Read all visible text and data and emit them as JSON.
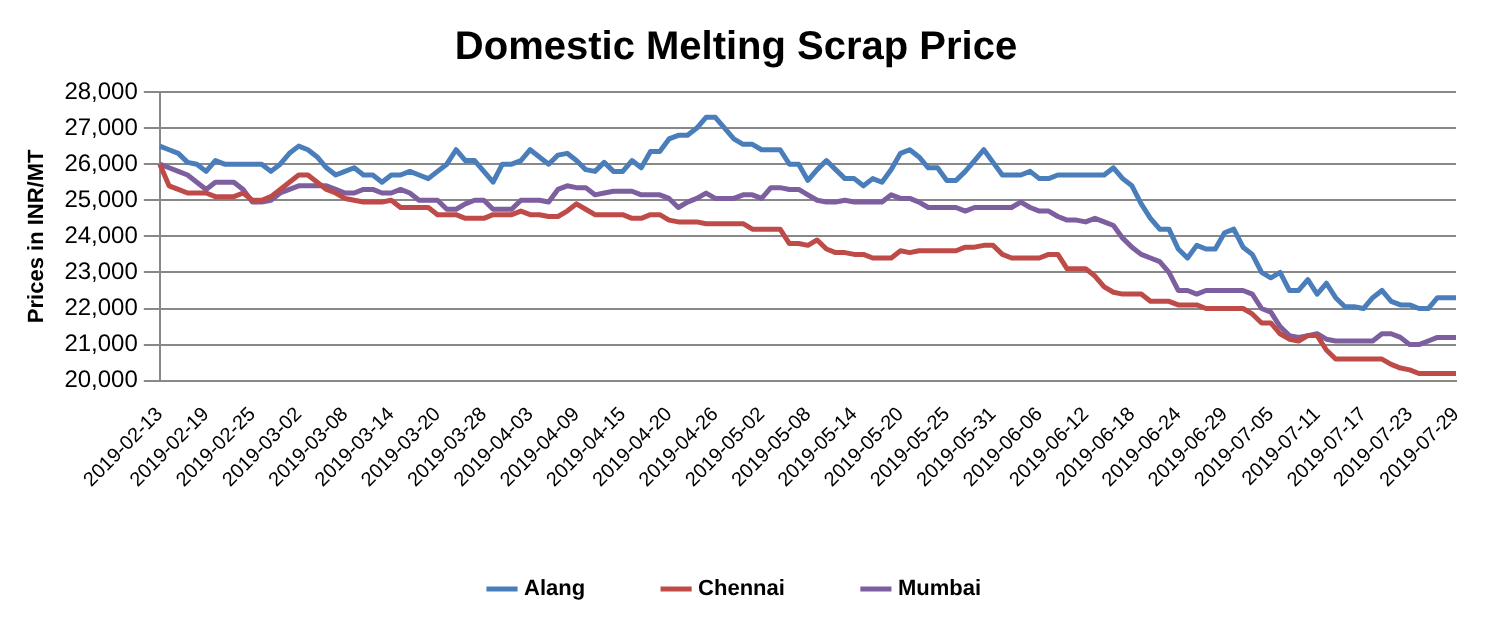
{
  "chart_data": {
    "type": "line",
    "title": "Domestic Melting Scrap Price",
    "ylabel": "Prices in INR/MT",
    "categories": [
      "2019-02-13",
      null,
      null,
      null,
      null,
      "2019-02-19",
      null,
      null,
      null,
      null,
      "2019-02-25",
      null,
      null,
      null,
      null,
      "2019-03-02",
      null,
      null,
      null,
      null,
      "2019-03-08",
      null,
      null,
      null,
      null,
      "2019-03-14",
      null,
      null,
      null,
      null,
      "2019-03-20",
      null,
      null,
      null,
      null,
      "2019-03-28",
      null,
      null,
      null,
      null,
      "2019-04-03",
      null,
      null,
      null,
      null,
      "2019-04-09",
      null,
      null,
      null,
      null,
      "2019-04-15",
      null,
      null,
      null,
      null,
      "2019-04-20",
      null,
      null,
      null,
      null,
      "2019-04-26",
      null,
      null,
      null,
      null,
      "2019-05-02",
      null,
      null,
      null,
      null,
      "2019-05-08",
      null,
      null,
      null,
      null,
      "2019-05-14",
      null,
      null,
      null,
      null,
      "2019-05-20",
      null,
      null,
      null,
      null,
      "2019-05-25",
      null,
      null,
      null,
      null,
      "2019-05-31",
      null,
      null,
      null,
      null,
      "2019-06-06",
      null,
      null,
      null,
      null,
      "2019-06-12",
      null,
      null,
      null,
      null,
      "2019-06-18",
      null,
      null,
      null,
      null,
      "2019-06-24",
      null,
      null,
      null,
      null,
      "2019-06-29",
      null,
      null,
      null,
      null,
      "2019-07-05",
      null,
      null,
      null,
      null,
      "2019-07-11",
      null,
      null,
      null,
      null,
      "2019-07-17",
      null,
      null,
      null,
      null,
      "2019-07-23",
      null,
      null,
      null,
      null,
      "2019-07-29"
    ],
    "series": [
      {
        "name": "Alang",
        "color": "#4a7ebb",
        "values": [
          26500,
          26400,
          26300,
          26050,
          26000,
          25800,
          26100,
          26000,
          26000,
          26000,
          26000,
          26000,
          25800,
          26000,
          26300,
          26500,
          26400,
          26200,
          25900,
          25700,
          25800,
          25900,
          25700,
          25700,
          25500,
          25700,
          25700,
          25800,
          25700,
          25600,
          25800,
          26000,
          26400,
          26100,
          26100,
          25800,
          25500,
          26000,
          26000,
          26100,
          26400,
          26200,
          26000,
          26250,
          26300,
          26100,
          25850,
          25800,
          26050,
          25800,
          25800,
          26100,
          25900,
          26350,
          26350,
          26700,
          26800,
          26800,
          27000,
          27300,
          27300,
          27000,
          26700,
          26550,
          26550,
          26400,
          26400,
          26400,
          26000,
          26000,
          25550,
          25850,
          26100,
          25850,
          25600,
          25600,
          25400,
          25600,
          25500,
          25850,
          26300,
          26400,
          26200,
          25900,
          25900,
          25550,
          25550,
          25800,
          26100,
          26400,
          26050,
          25700,
          25700,
          25700,
          25800,
          25600,
          25600,
          25700,
          25700,
          25700,
          25700,
          25700,
          25700,
          25900,
          25600,
          25400,
          24900,
          24500,
          24200,
          24200,
          23650,
          23400,
          23750,
          23650,
          23650,
          24100,
          24200,
          23700,
          23500,
          23000,
          22850,
          23000,
          22500,
          22500,
          22800,
          22400,
          22700,
          22300,
          22050,
          22050,
          22000,
          22300,
          22500,
          22200,
          22100,
          22100,
          22000,
          22000,
          22300,
          22300,
          22300
        ]
      },
      {
        "name": "Chennai",
        "color": "#be4b48",
        "values": [
          26000,
          25400,
          25300,
          25200,
          25200,
          25200,
          25100,
          25100,
          25100,
          25200,
          25000,
          25000,
          25100,
          25300,
          25500,
          25700,
          25700,
          25500,
          25300,
          25200,
          25050,
          25000,
          24950,
          24950,
          24950,
          25000,
          24800,
          24800,
          24800,
          24800,
          24600,
          24600,
          24600,
          24500,
          24500,
          24500,
          24600,
          24600,
          24600,
          24700,
          24600,
          24600,
          24550,
          24550,
          24700,
          24900,
          24750,
          24600,
          24600,
          24600,
          24600,
          24500,
          24500,
          24600,
          24600,
          24450,
          24400,
          24400,
          24400,
          24350,
          24350,
          24350,
          24350,
          24350,
          24200,
          24200,
          24200,
          24200,
          23800,
          23800,
          23750,
          23900,
          23650,
          23550,
          23550,
          23500,
          23500,
          23400,
          23400,
          23400,
          23600,
          23550,
          23600,
          23600,
          23600,
          23600,
          23600,
          23700,
          23700,
          23750,
          23750,
          23500,
          23400,
          23400,
          23400,
          23400,
          23500,
          23500,
          23100,
          23100,
          23100,
          22900,
          22600,
          22450,
          22400,
          22400,
          22400,
          22200,
          22200,
          22200,
          22100,
          22100,
          22100,
          22000,
          22000,
          22000,
          22000,
          22000,
          21850,
          21600,
          21600,
          21300,
          21150,
          21100,
          21250,
          21250,
          20850,
          20600,
          20600,
          20600,
          20600,
          20600,
          20600,
          20450,
          20350,
          20300,
          20200,
          20200,
          20200,
          20200,
          20200
        ]
      },
      {
        "name": "Mumbai",
        "color": "#7d5fa0",
        "values": [
          26000,
          25900,
          25800,
          25700,
          25500,
          25300,
          25500,
          25500,
          25500,
          25300,
          24950,
          24950,
          25000,
          25200,
          25300,
          25400,
          25400,
          25400,
          25400,
          25300,
          25200,
          25200,
          25300,
          25300,
          25200,
          25200,
          25300,
          25200,
          25000,
          25000,
          25000,
          24750,
          24750,
          24900,
          25000,
          25000,
          24750,
          24750,
          24750,
          25000,
          25000,
          25000,
          24950,
          25300,
          25400,
          25350,
          25350,
          25150,
          25200,
          25250,
          25250,
          25250,
          25150,
          25150,
          25150,
          25050,
          24800,
          24950,
          25050,
          25200,
          25050,
          25050,
          25050,
          25150,
          25150,
          25050,
          25350,
          25350,
          25300,
          25300,
          25150,
          25000,
          24950,
          24950,
          25000,
          24950,
          24950,
          24950,
          24950,
          25150,
          25050,
          25050,
          24950,
          24800,
          24800,
          24800,
          24800,
          24700,
          24800,
          24800,
          24800,
          24800,
          24800,
          24950,
          24800,
          24700,
          24700,
          24550,
          24450,
          24450,
          24400,
          24500,
          24400,
          24300,
          23950,
          23700,
          23500,
          23400,
          23300,
          23000,
          22500,
          22500,
          22400,
          22500,
          22500,
          22500,
          22500,
          22500,
          22400,
          22000,
          21900,
          21500,
          21250,
          21200,
          21250,
          21300,
          21150,
          21100,
          21100,
          21100,
          21100,
          21100,
          21300,
          21300,
          21200,
          21000,
          21000,
          21100,
          21200,
          21200,
          21200
        ]
      }
    ],
    "ylim": [
      20000,
      28000
    ],
    "yticks": [
      {
        "value": 20000,
        "label": "20,000"
      },
      {
        "value": 21000,
        "label": "21,000"
      },
      {
        "value": 22000,
        "label": "22,000"
      },
      {
        "value": 23000,
        "label": "23,000"
      },
      {
        "value": 24000,
        "label": "24,000"
      },
      {
        "value": 25000,
        "label": "25,000"
      },
      {
        "value": 26000,
        "label": "26,000"
      },
      {
        "value": 27000,
        "label": "27,000"
      },
      {
        "value": 28000,
        "label": "28,000"
      }
    ],
    "grid": "y",
    "legend": "bottom",
    "marker": "none",
    "line_style": "solid"
  }
}
